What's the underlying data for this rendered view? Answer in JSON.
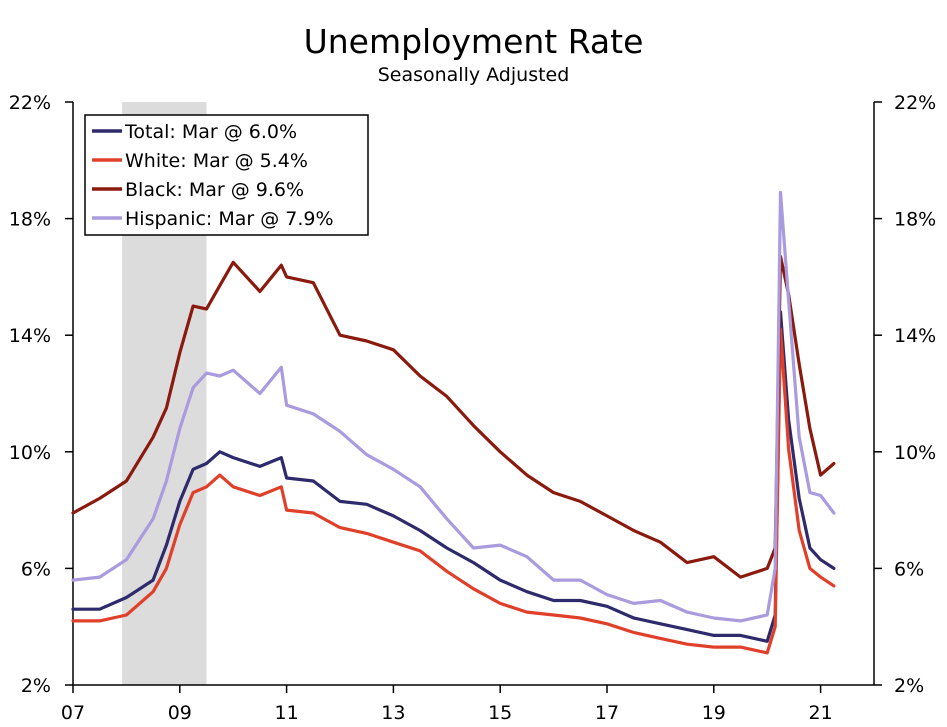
{
  "title": "Unemployment Rate",
  "subtitle": "Seasonally Adjusted",
  "chart_data": {
    "type": "line",
    "x_range": [
      2007,
      2022
    ],
    "ylim": [
      2,
      22
    ],
    "y_ticks": [
      "2%",
      "6%",
      "10%",
      "14%",
      "18%",
      "22%"
    ],
    "y_tick_values": [
      2,
      6,
      10,
      14,
      18,
      22
    ],
    "x_ticks": [
      "07",
      "09",
      "11",
      "13",
      "15",
      "17",
      "19",
      "21"
    ],
    "x_tick_values": [
      2007,
      2009,
      2011,
      2013,
      2015,
      2017,
      2019,
      2021
    ],
    "recession": {
      "start": 2007.92,
      "end": 2009.5,
      "color": "#dcdcdc"
    },
    "legend_position": "top-left",
    "series": [
      {
        "name": "Total: Mar @ 6.0%",
        "color": "#2e2a6b",
        "points": [
          [
            2007.0,
            4.6
          ],
          [
            2007.5,
            4.6
          ],
          [
            2008.0,
            5.0
          ],
          [
            2008.5,
            5.6
          ],
          [
            2008.75,
            6.8
          ],
          [
            2009.0,
            8.3
          ],
          [
            2009.25,
            9.4
          ],
          [
            2009.5,
            9.6
          ],
          [
            2009.75,
            10.0
          ],
          [
            2010.0,
            9.8
          ],
          [
            2010.5,
            9.5
          ],
          [
            2010.9,
            9.8
          ],
          [
            2011.0,
            9.1
          ],
          [
            2011.5,
            9.0
          ],
          [
            2012.0,
            8.3
          ],
          [
            2012.5,
            8.2
          ],
          [
            2013.0,
            7.8
          ],
          [
            2013.5,
            7.3
          ],
          [
            2014.0,
            6.7
          ],
          [
            2014.5,
            6.2
          ],
          [
            2015.0,
            5.6
          ],
          [
            2015.5,
            5.2
          ],
          [
            2016.0,
            4.9
          ],
          [
            2016.5,
            4.9
          ],
          [
            2017.0,
            4.7
          ],
          [
            2017.5,
            4.3
          ],
          [
            2018.0,
            4.1
          ],
          [
            2018.5,
            3.9
          ],
          [
            2019.0,
            3.7
          ],
          [
            2019.5,
            3.7
          ],
          [
            2020.0,
            3.5
          ],
          [
            2020.15,
            4.4
          ],
          [
            2020.25,
            14.8
          ],
          [
            2020.4,
            11.1
          ],
          [
            2020.6,
            8.4
          ],
          [
            2020.8,
            6.7
          ],
          [
            2021.0,
            6.3
          ],
          [
            2021.25,
            6.0
          ]
        ]
      },
      {
        "name": "White: Mar @ 5.4%",
        "color": "#e0402a",
        "points": [
          [
            2007.0,
            4.2
          ],
          [
            2007.5,
            4.2
          ],
          [
            2008.0,
            4.4
          ],
          [
            2008.5,
            5.2
          ],
          [
            2008.75,
            6.0
          ],
          [
            2009.0,
            7.5
          ],
          [
            2009.25,
            8.6
          ],
          [
            2009.5,
            8.8
          ],
          [
            2009.75,
            9.2
          ],
          [
            2010.0,
            8.8
          ],
          [
            2010.5,
            8.5
          ],
          [
            2010.9,
            8.8
          ],
          [
            2011.0,
            8.0
          ],
          [
            2011.5,
            7.9
          ],
          [
            2012.0,
            7.4
          ],
          [
            2012.5,
            7.2
          ],
          [
            2013.0,
            6.9
          ],
          [
            2013.5,
            6.6
          ],
          [
            2014.0,
            5.9
          ],
          [
            2014.5,
            5.3
          ],
          [
            2015.0,
            4.8
          ],
          [
            2015.5,
            4.5
          ],
          [
            2016.0,
            4.4
          ],
          [
            2016.5,
            4.3
          ],
          [
            2017.0,
            4.1
          ],
          [
            2017.5,
            3.8
          ],
          [
            2018.0,
            3.6
          ],
          [
            2018.5,
            3.4
          ],
          [
            2019.0,
            3.3
          ],
          [
            2019.5,
            3.3
          ],
          [
            2020.0,
            3.1
          ],
          [
            2020.15,
            4.0
          ],
          [
            2020.25,
            14.2
          ],
          [
            2020.4,
            10.1
          ],
          [
            2020.6,
            7.3
          ],
          [
            2020.8,
            6.0
          ],
          [
            2021.0,
            5.7
          ],
          [
            2021.25,
            5.4
          ]
        ]
      },
      {
        "name": "Black: Mar @ 9.6%",
        "color": "#8b1a0e",
        "points": [
          [
            2007.0,
            7.9
          ],
          [
            2007.5,
            8.4
          ],
          [
            2008.0,
            9.0
          ],
          [
            2008.5,
            10.5
          ],
          [
            2008.75,
            11.5
          ],
          [
            2009.0,
            13.4
          ],
          [
            2009.25,
            15.0
          ],
          [
            2009.5,
            14.9
          ],
          [
            2009.75,
            15.7
          ],
          [
            2010.0,
            16.5
          ],
          [
            2010.5,
            15.5
          ],
          [
            2010.9,
            16.4
          ],
          [
            2011.0,
            16.0
          ],
          [
            2011.5,
            15.8
          ],
          [
            2012.0,
            14.0
          ],
          [
            2012.5,
            13.8
          ],
          [
            2013.0,
            13.5
          ],
          [
            2013.5,
            12.6
          ],
          [
            2014.0,
            11.9
          ],
          [
            2014.5,
            10.9
          ],
          [
            2015.0,
            10.0
          ],
          [
            2015.5,
            9.2
          ],
          [
            2016.0,
            8.6
          ],
          [
            2016.5,
            8.3
          ],
          [
            2017.0,
            7.8
          ],
          [
            2017.5,
            7.3
          ],
          [
            2018.0,
            6.9
          ],
          [
            2018.5,
            6.2
          ],
          [
            2019.0,
            6.4
          ],
          [
            2019.5,
            5.7
          ],
          [
            2020.0,
            6.0
          ],
          [
            2020.15,
            6.7
          ],
          [
            2020.25,
            16.7
          ],
          [
            2020.4,
            15.4
          ],
          [
            2020.6,
            13.0
          ],
          [
            2020.8,
            10.8
          ],
          [
            2021.0,
            9.2
          ],
          [
            2021.25,
            9.6
          ]
        ]
      },
      {
        "name": "Hispanic: Mar @ 7.9%",
        "color": "#a99bde",
        "points": [
          [
            2007.0,
            5.6
          ],
          [
            2007.5,
            5.7
          ],
          [
            2008.0,
            6.3
          ],
          [
            2008.5,
            7.7
          ],
          [
            2008.75,
            9.0
          ],
          [
            2009.0,
            10.8
          ],
          [
            2009.25,
            12.2
          ],
          [
            2009.5,
            12.7
          ],
          [
            2009.75,
            12.6
          ],
          [
            2010.0,
            12.8
          ],
          [
            2010.5,
            12.0
          ],
          [
            2010.9,
            12.9
          ],
          [
            2011.0,
            11.6
          ],
          [
            2011.5,
            11.3
          ],
          [
            2012.0,
            10.7
          ],
          [
            2012.5,
            9.9
          ],
          [
            2013.0,
            9.4
          ],
          [
            2013.5,
            8.8
          ],
          [
            2014.0,
            7.7
          ],
          [
            2014.5,
            6.7
          ],
          [
            2015.0,
            6.8
          ],
          [
            2015.5,
            6.4
          ],
          [
            2016.0,
            5.6
          ],
          [
            2016.5,
            5.6
          ],
          [
            2017.0,
            5.1
          ],
          [
            2017.5,
            4.8
          ],
          [
            2018.0,
            4.9
          ],
          [
            2018.5,
            4.5
          ],
          [
            2019.0,
            4.3
          ],
          [
            2019.5,
            4.2
          ],
          [
            2020.0,
            4.4
          ],
          [
            2020.15,
            6.0
          ],
          [
            2020.25,
            18.9
          ],
          [
            2020.4,
            15.2
          ],
          [
            2020.6,
            10.5
          ],
          [
            2020.8,
            8.6
          ],
          [
            2021.0,
            8.5
          ],
          [
            2021.25,
            7.9
          ]
        ]
      }
    ]
  }
}
